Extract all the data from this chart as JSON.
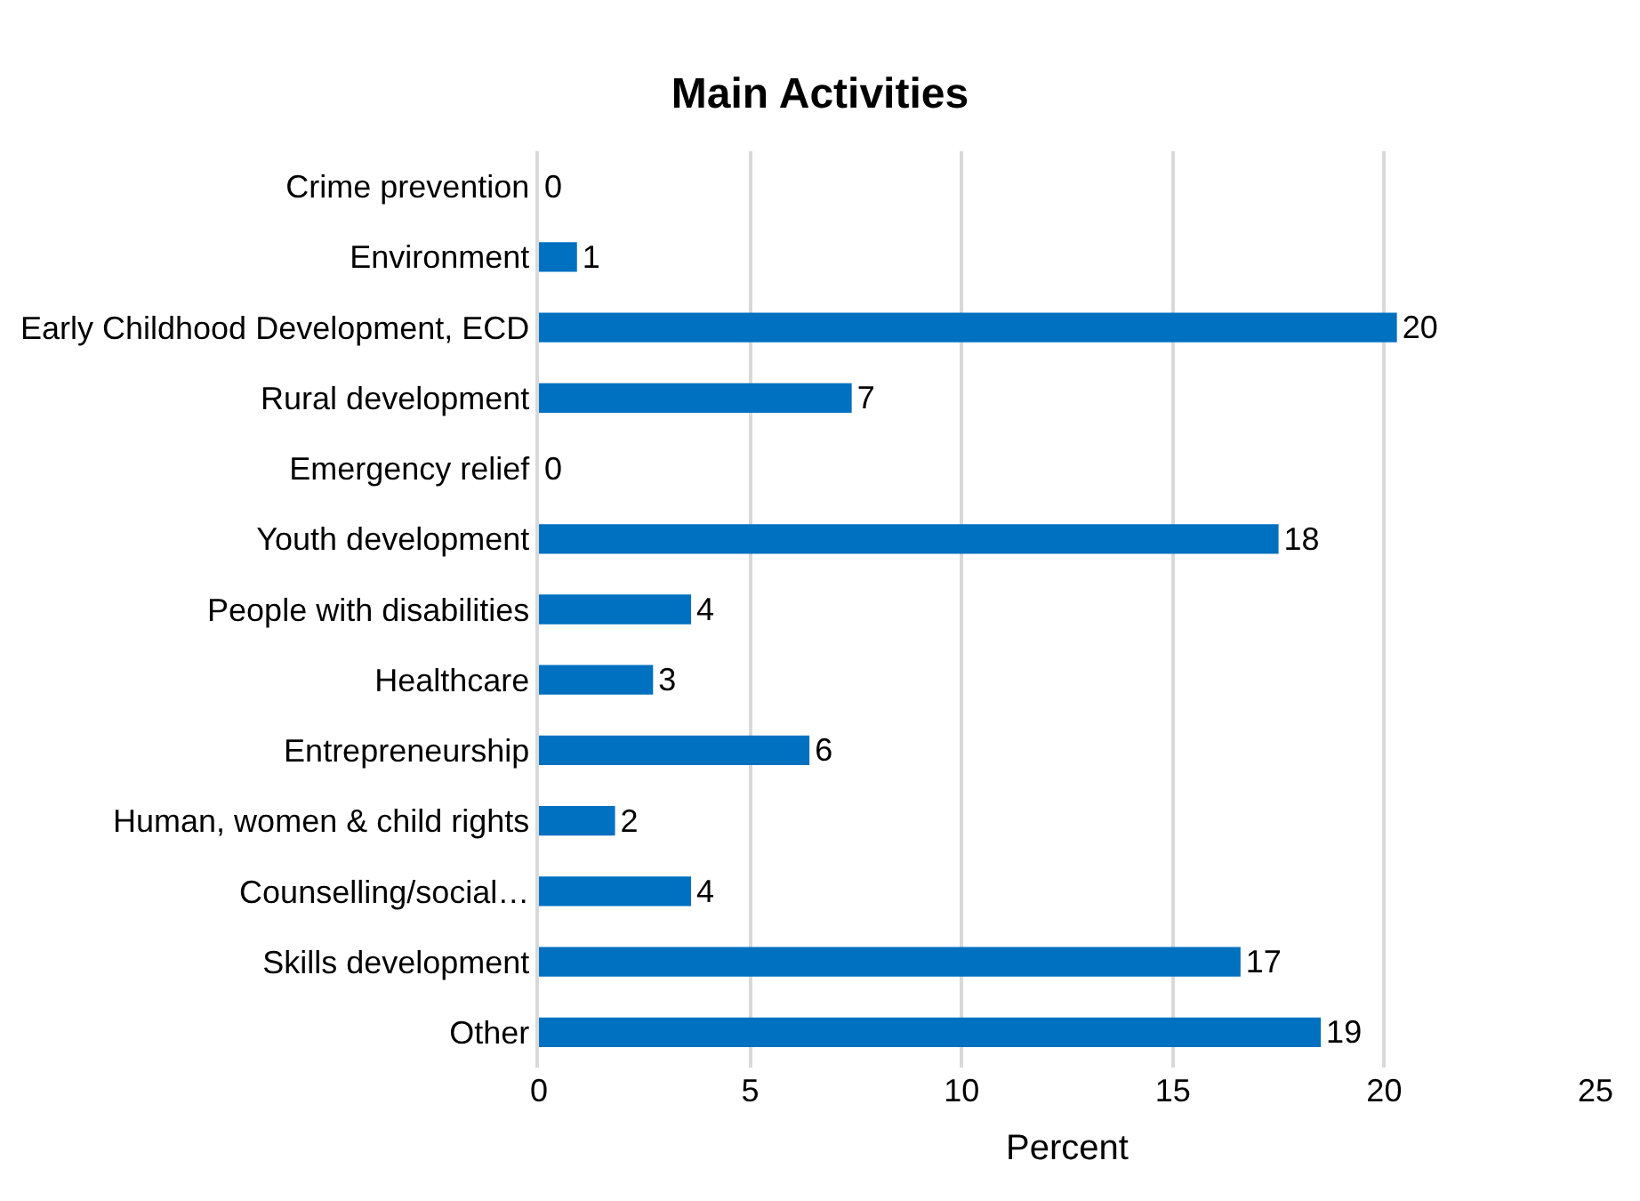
{
  "chart_data": {
    "type": "bar",
    "orientation": "horizontal",
    "title": "Main Activities",
    "xlabel": "Percent",
    "categories": [
      "Crime prevention",
      "Environment",
      "Early Childhood Development, ECD",
      "Rural development",
      "Emergency relief",
      "Youth development",
      "People with disabilities",
      "Healthcare",
      "Entrepreneurship",
      "Human, women & child rights",
      "Counselling/social…",
      "Skills development",
      "Other"
    ],
    "values": [
      0,
      0.9,
      20.3,
      7.4,
      0,
      17.5,
      3.6,
      2.7,
      6.4,
      1.8,
      3.6,
      16.6,
      18.5
    ],
    "value_labels": [
      "0",
      "1",
      "20",
      "7",
      "0",
      "18",
      "4",
      "3",
      "6",
      "2",
      "4",
      "17",
      "19"
    ],
    "color": "#0070c0",
    "xlim": [
      0,
      25
    ],
    "xticks": [
      0,
      5,
      10,
      15,
      20,
      25
    ],
    "grid": "x",
    "legend": false
  }
}
